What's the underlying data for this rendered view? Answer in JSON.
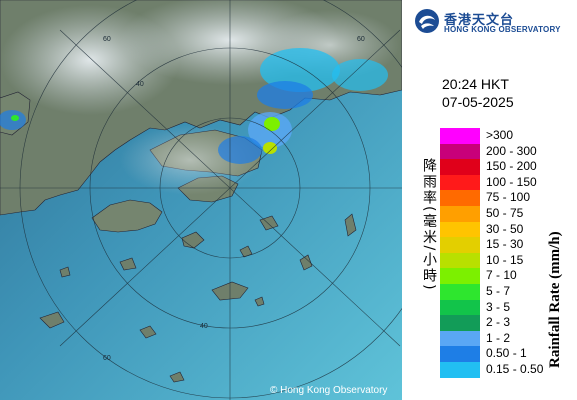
{
  "logo": {
    "icon": "hko-logo-icon",
    "name_zh": "香港天文台",
    "name_en": "HONG KONG OBSERVATORY"
  },
  "timestamp": {
    "time": "20:24 HKT",
    "date": "07-05-2025"
  },
  "legend": {
    "title_zh": "降雨率(毫米/小時)",
    "title_en": "Rainfall Rate (mm/h)",
    "items": [
      {
        "label": ">300",
        "color": "#ff00ff"
      },
      {
        "label": "200 - 300",
        "color": "#c8007a"
      },
      {
        "label": "150 - 200",
        "color": "#e0001a"
      },
      {
        "label": "100 - 150",
        "color": "#ff1a1a"
      },
      {
        "label": "75 - 100",
        "color": "#ff6a00"
      },
      {
        "label": "50 - 75",
        "color": "#ff9f00"
      },
      {
        "label": "30 - 50",
        "color": "#ffc400"
      },
      {
        "label": "15 - 30",
        "color": "#e3cf00"
      },
      {
        "label": "10 - 15",
        "color": "#b8e000"
      },
      {
        "label": "7 - 10",
        "color": "#7cf000"
      },
      {
        "label": "5 - 7",
        "color": "#2ee62e"
      },
      {
        "label": "3 - 5",
        "color": "#12c44a"
      },
      {
        "label": "2 - 3",
        "color": "#129c58"
      },
      {
        "label": "1 - 2",
        "color": "#5aa7f5"
      },
      {
        "label": "0.50 - 1",
        "color": "#1e7ee6"
      },
      {
        "label": "0.15 - 0.50",
        "color": "#22bff2"
      }
    ]
  },
  "map": {
    "ring_labels": [
      "60",
      "60",
      "40",
      "40",
      "60"
    ],
    "copyright": "© Hong Kong Observatory",
    "sea_color": "#4fa8c9",
    "land_color": "#6b7a68"
  }
}
